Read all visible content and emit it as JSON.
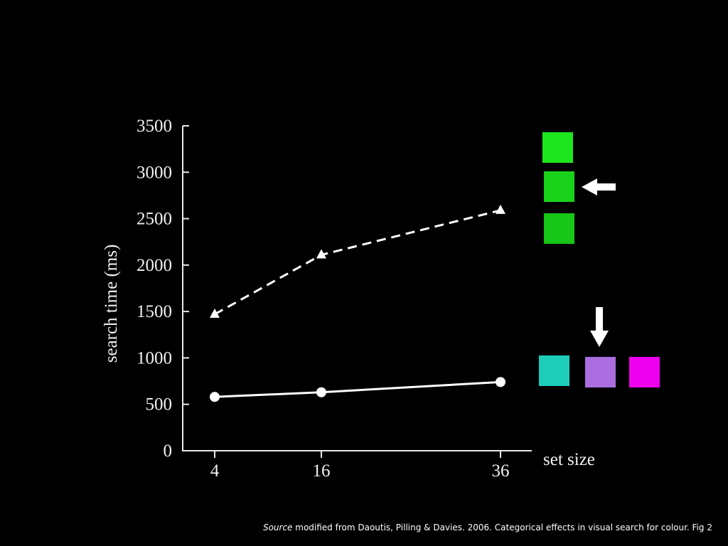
{
  "chart_data": {
    "type": "line",
    "x": [
      4,
      16,
      36
    ],
    "xticks": [
      "4",
      "16",
      "36"
    ],
    "yticks": [
      "0",
      "500",
      "1000",
      "1500",
      "2000",
      "2500",
      "3000",
      "3500"
    ],
    "ylim": [
      0,
      3500
    ],
    "xlabel": "set size",
    "ylabel": "search time (ms)",
    "series": [
      {
        "values": [
          1470,
          2110,
          2590
        ],
        "style": "dashed",
        "marker": "triangle",
        "color": "#ffffff"
      },
      {
        "values": [
          580,
          630,
          740
        ],
        "style": "solid",
        "marker": "circle",
        "color": "#ffffff"
      }
    ],
    "grid": false,
    "legend": "none"
  },
  "swatches": {
    "green_column": [
      "#1ee61e",
      "#1ad21a",
      "#17c617"
    ],
    "green_target_arrow": "left-arrow",
    "bottom_row": [
      "#1ecdb9",
      "#aa6ee0",
      "#ee00ee"
    ],
    "bottom_target_arrow": "down-arrow"
  },
  "source": {
    "prefix": "Source",
    "text": " modified from Daoutis, Pilling & Davies. 2006. Categorical effects in visual search for colour. Fig 2"
  }
}
